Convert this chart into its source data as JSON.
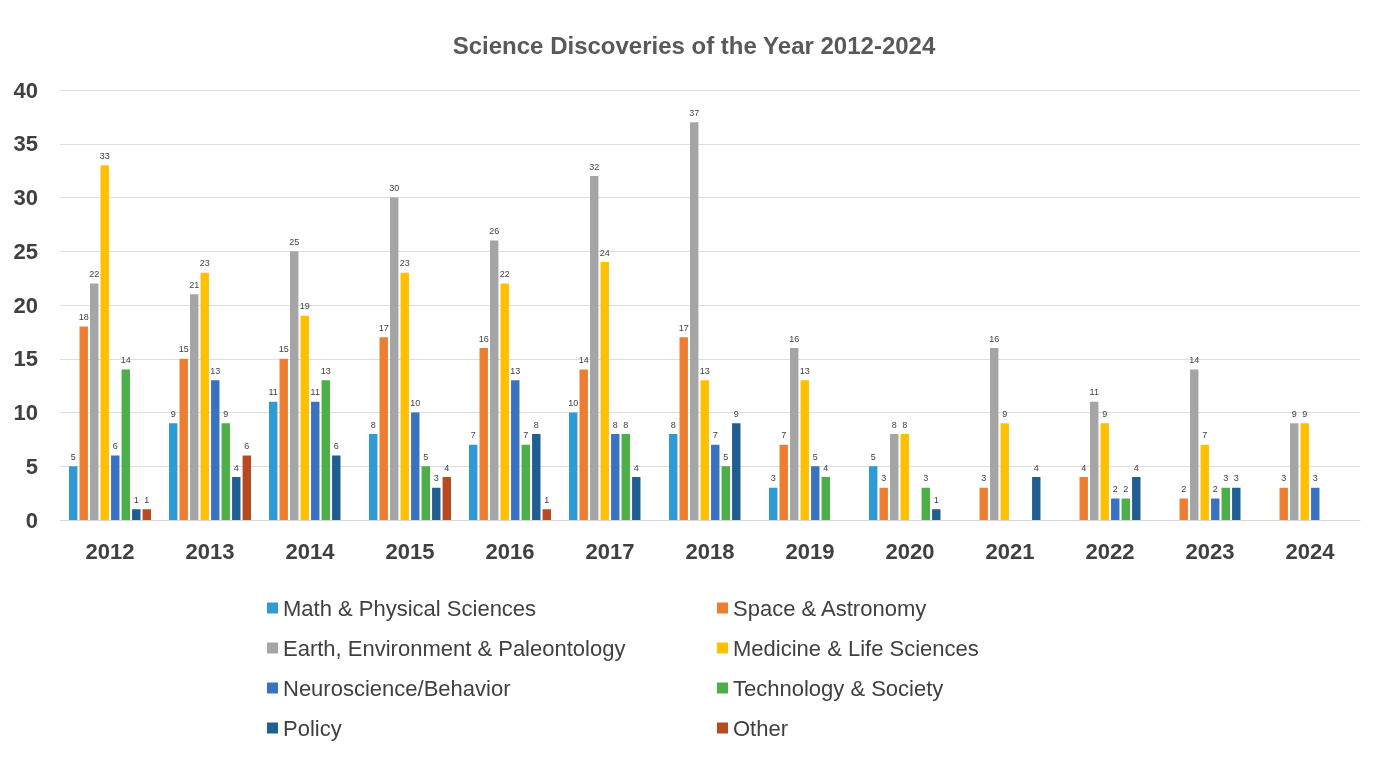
{
  "chart_data": {
    "type": "bar",
    "title": "Science Discoveries of the Year 2012-2024",
    "categories": [
      "2012",
      "2013",
      "2014",
      "2015",
      "2016",
      "2017",
      "2018",
      "2019",
      "2020",
      "2021",
      "2022",
      "2023",
      "2024"
    ],
    "series": [
      {
        "name": "Math & Physical Sciences",
        "color": "#2e9bd6",
        "values": [
          5,
          9,
          11,
          8,
          7,
          10,
          8,
          3,
          5,
          null,
          null,
          null,
          null
        ]
      },
      {
        "name": "Space & Astronomy",
        "color": "#ed7d31",
        "values": [
          18,
          15,
          15,
          17,
          16,
          14,
          17,
          7,
          3,
          3,
          4,
          2,
          3
        ]
      },
      {
        "name": "Earth, Environment & Paleontology",
        "color": "#a5a5a5",
        "values": [
          22,
          21,
          25,
          30,
          26,
          32,
          37,
          16,
          8,
          16,
          11,
          14,
          9
        ]
      },
      {
        "name": "Medicine & Life Sciences",
        "color": "#ffc000",
        "values": [
          33,
          23,
          19,
          23,
          22,
          24,
          13,
          13,
          8,
          9,
          9,
          7,
          9
        ]
      },
      {
        "name": "Neuroscience/Behavior",
        "color": "#3a72c2",
        "values": [
          6,
          13,
          11,
          10,
          13,
          8,
          7,
          5,
          null,
          null,
          2,
          2,
          3
        ]
      },
      {
        "name": "Technology & Society",
        "color": "#4caf48",
        "values": [
          14,
          9,
          13,
          5,
          7,
          8,
          5,
          4,
          3,
          null,
          2,
          3,
          null
        ]
      },
      {
        "name": "Policy",
        "color": "#1f5e91",
        "values": [
          1,
          4,
          6,
          3,
          8,
          4,
          9,
          null,
          1,
          4,
          4,
          3,
          null
        ]
      },
      {
        "name": "Other",
        "color": "#b84a22",
        "values": [
          1,
          6,
          null,
          4,
          1,
          null,
          null,
          null,
          null,
          null,
          null,
          null,
          null
        ]
      }
    ],
    "ylim": [
      0,
      40
    ],
    "yticks": [
      0,
      5,
      10,
      15,
      20,
      25,
      30,
      35,
      40
    ],
    "grid": "y",
    "legend": "bottom",
    "data_labels": true
  }
}
